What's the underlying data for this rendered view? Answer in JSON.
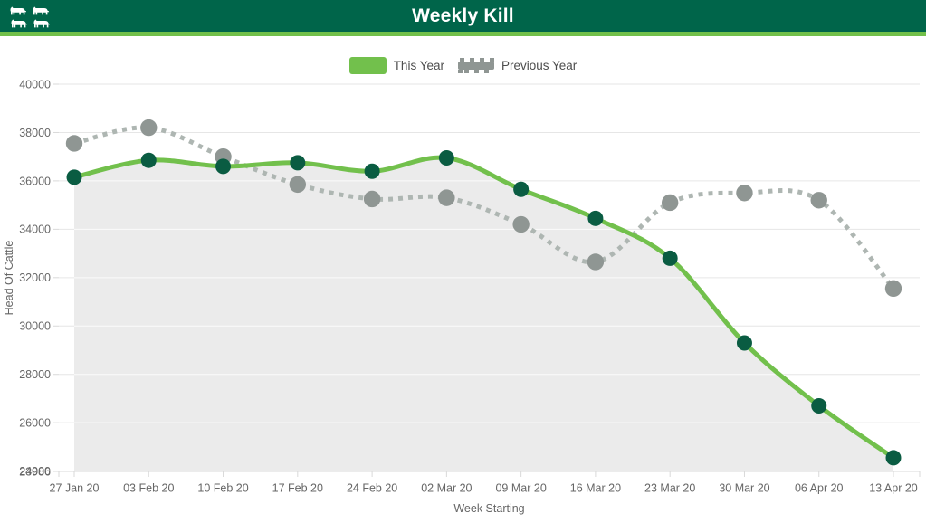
{
  "header": {
    "title": "Weekly Kill",
    "bg_color": "#00654a",
    "accent_color": "#72c04a",
    "icon": "cattle-icon"
  },
  "chart_data": {
    "type": "line",
    "title": "Weekly Kill",
    "xlabel": "Week Starting",
    "ylabel": "Head Of Cattle",
    "categories": [
      "27 Jan 20",
      "03 Feb 20",
      "10 Feb 20",
      "17 Feb 20",
      "24 Feb 20",
      "02 Mar 20",
      "09 Mar 20",
      "16 Mar 20",
      "23 Mar 20",
      "30 Mar 20",
      "06 Apr 20",
      "13 Apr 20"
    ],
    "series": [
      {
        "name": "This Year",
        "style": "solid-line-with-area",
        "line_color": "#72c04c",
        "marker_color": "#0a5c42",
        "area_color": "#ebebeb",
        "values": [
          36150,
          36850,
          36600,
          36750,
          36400,
          36950,
          35650,
          34450,
          32800,
          29300,
          26700,
          24550
        ]
      },
      {
        "name": "Previous Year",
        "style": "dotted-line",
        "line_color": "#aeb6b2",
        "marker_color": "#8f9693",
        "values": [
          37550,
          38200,
          37000,
          35850,
          35250,
          35300,
          34200,
          32650,
          35100,
          35500,
          35200,
          31550
        ]
      }
    ],
    "ylim": [
      23986,
      40000
    ],
    "yticks": [
      26000,
      28000,
      30000,
      32000,
      34000,
      36000,
      38000,
      40000
    ],
    "y_overlap_ticks": [
      24000,
      23986
    ],
    "grid": true,
    "legend_position": "top",
    "gridline_color": "#e6e6e6",
    "axis_color": "#d9d9d9",
    "label_color": "#666666"
  }
}
